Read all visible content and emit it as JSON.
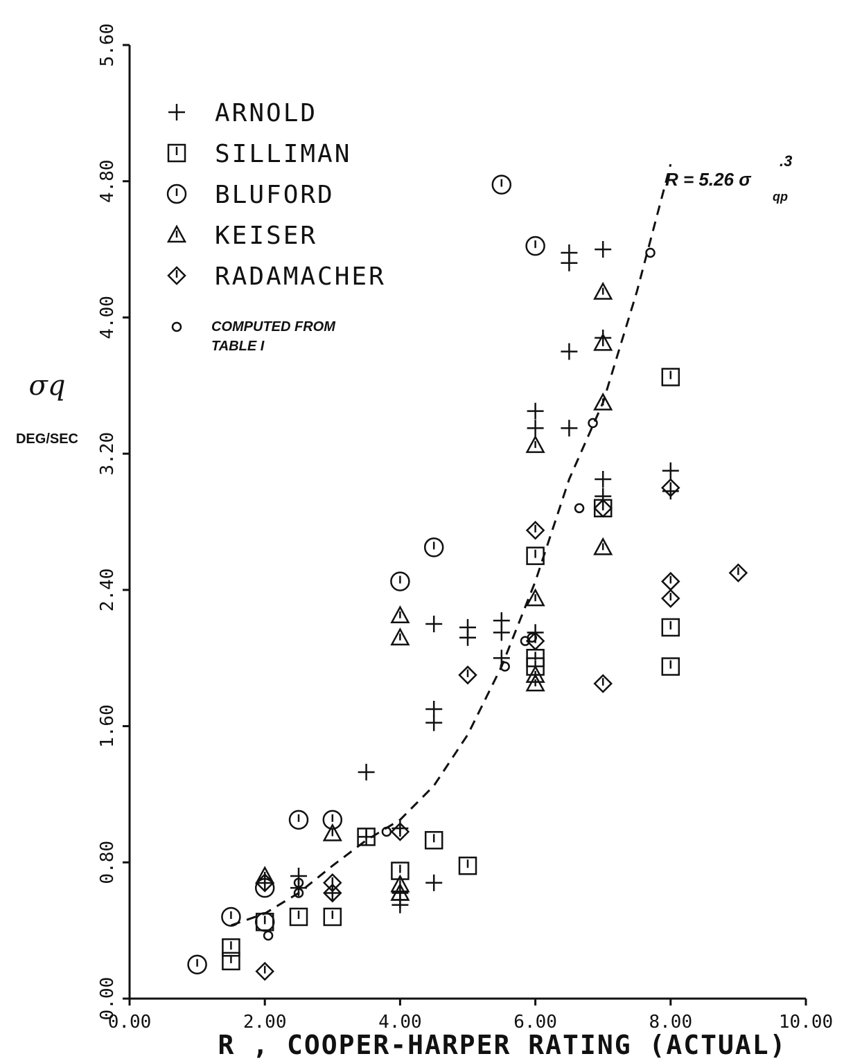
{
  "chart_data": {
    "type": "scatter",
    "title": "",
    "xlabel": "R , COOPER-HARPER RATING (ACTUAL)",
    "ylabel": "σq",
    "yunit": "DEG/SEC",
    "xlim": [
      0,
      10
    ],
    "ylim": [
      0,
      5.6
    ],
    "xticks": [
      "0.00",
      "2.00",
      "4.00",
      "6.00",
      "8.00",
      "10.00"
    ],
    "yticks": [
      "0.00",
      "0.80",
      "1.60",
      "2.40",
      "3.20",
      "4.00",
      "4.80",
      "5.60"
    ],
    "grid": false,
    "legend_position": "top-left",
    "fit_annotation": {
      "prefix": "R = 5.26 σ",
      "subscript": "qp",
      "exponent": ".3"
    },
    "series": [
      {
        "name": "ARNOLD",
        "marker": "plus",
        "points": [
          [
            2.5,
            0.72
          ],
          [
            2.5,
            0.65
          ],
          [
            3.0,
            0.62
          ],
          [
            3.5,
            1.33
          ],
          [
            3.5,
            0.95
          ],
          [
            4.0,
            1.0
          ],
          [
            4.0,
            0.62
          ],
          [
            4.0,
            0.55
          ],
          [
            4.5,
            0.68
          ],
          [
            4.5,
            2.2
          ],
          [
            4.5,
            1.7
          ],
          [
            4.5,
            1.62
          ],
          [
            5.0,
            2.18
          ],
          [
            5.0,
            2.12
          ],
          [
            5.5,
            2.22
          ],
          [
            5.5,
            2.15
          ],
          [
            5.5,
            2.0
          ],
          [
            6.0,
            3.45
          ],
          [
            6.0,
            3.35
          ],
          [
            6.0,
            2.15
          ],
          [
            6.5,
            4.38
          ],
          [
            6.5,
            4.32
          ],
          [
            6.5,
            3.8
          ],
          [
            6.5,
            3.35
          ],
          [
            7.0,
            4.4
          ],
          [
            7.0,
            3.88
          ],
          [
            7.0,
            3.05
          ],
          [
            7.0,
            2.95
          ],
          [
            8.0,
            3.1
          ],
          [
            8.0,
            2.98
          ],
          [
            4.0,
            0.58
          ]
        ]
      },
      {
        "name": "SILLIMAN",
        "marker": "square",
        "points": [
          [
            1.5,
            0.3
          ],
          [
            1.5,
            0.22
          ],
          [
            2.0,
            0.45
          ],
          [
            2.5,
            0.48
          ],
          [
            3.0,
            0.48
          ],
          [
            3.5,
            0.95
          ],
          [
            4.0,
            0.75
          ],
          [
            4.5,
            0.93
          ],
          [
            5.0,
            0.78
          ],
          [
            6.0,
            2.6
          ],
          [
            6.0,
            2.0
          ],
          [
            6.0,
            1.95
          ],
          [
            7.0,
            2.88
          ],
          [
            8.0,
            3.65
          ],
          [
            8.0,
            2.18
          ],
          [
            8.0,
            1.95
          ]
        ]
      },
      {
        "name": "BLUFORD",
        "marker": "circle",
        "points": [
          [
            1.0,
            0.2
          ],
          [
            1.5,
            0.48
          ],
          [
            2.0,
            0.65
          ],
          [
            2.0,
            0.45
          ],
          [
            2.5,
            1.05
          ],
          [
            3.0,
            1.05
          ],
          [
            4.0,
            2.45
          ],
          [
            4.5,
            2.65
          ],
          [
            5.5,
            4.78
          ],
          [
            6.0,
            4.42
          ]
        ]
      },
      {
        "name": "KEISER",
        "marker": "triangle",
        "points": [
          [
            2.0,
            0.72
          ],
          [
            3.0,
            0.97
          ],
          [
            4.0,
            0.67
          ],
          [
            4.0,
            0.62
          ],
          [
            4.0,
            2.25
          ],
          [
            4.0,
            2.12
          ],
          [
            6.0,
            3.25
          ],
          [
            6.0,
            2.35
          ],
          [
            6.0,
            1.9
          ],
          [
            6.0,
            1.85
          ],
          [
            7.0,
            4.15
          ],
          [
            7.0,
            3.85
          ],
          [
            7.0,
            3.5
          ],
          [
            7.0,
            2.65
          ]
        ]
      },
      {
        "name": "RADAMACHER",
        "marker": "diamond",
        "points": [
          [
            2.0,
            0.16
          ],
          [
            2.0,
            0.68
          ],
          [
            3.0,
            0.68
          ],
          [
            3.0,
            0.62
          ],
          [
            4.0,
            0.98
          ],
          [
            5.0,
            1.9
          ],
          [
            6.0,
            2.75
          ],
          [
            6.0,
            2.1
          ],
          [
            7.0,
            2.88
          ],
          [
            7.0,
            1.85
          ],
          [
            8.0,
            3.0
          ],
          [
            8.0,
            2.45
          ],
          [
            8.0,
            2.35
          ],
          [
            9.0,
            2.5
          ]
        ]
      },
      {
        "name": "COMPUTED FROM TABLE I",
        "marker": "small-circle",
        "points": [
          [
            2.05,
            0.37
          ],
          [
            2.5,
            0.62
          ],
          [
            2.5,
            0.68
          ],
          [
            3.8,
            0.98
          ],
          [
            5.55,
            1.95
          ],
          [
            5.85,
            2.1
          ],
          [
            5.95,
            2.12
          ],
          [
            6.65,
            2.88
          ],
          [
            6.85,
            3.38
          ],
          [
            7.7,
            4.38
          ]
        ]
      }
    ],
    "fit_curve": {
      "label": "R = 5.26 σqp^.3",
      "x": [
        1.5,
        2.0,
        2.5,
        3.0,
        3.5,
        4.0,
        4.5,
        5.0,
        5.5,
        6.0,
        6.5,
        7.0,
        7.5,
        8.0
      ],
      "y": [
        0.43,
        0.5,
        0.62,
        0.78,
        0.93,
        1.05,
        1.25,
        1.55,
        1.95,
        2.45,
        3.05,
        3.5,
        4.15,
        4.9
      ]
    }
  }
}
